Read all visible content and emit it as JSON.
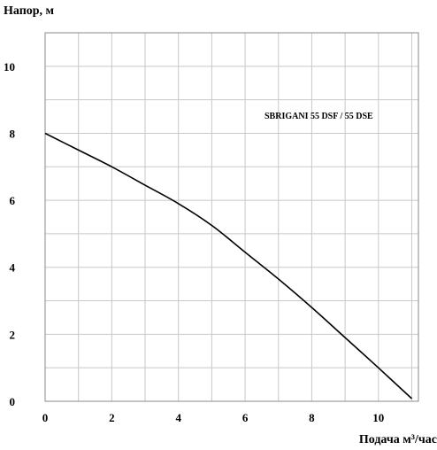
{
  "chart_data": {
    "type": "line",
    "title": "",
    "ylabel": "Напор, м",
    "xlabel": "Подача  м³/час",
    "annotation": "SBRIGANI 55 DSF / 55 DSE",
    "xlim": [
      0,
      11.2
    ],
    "ylim": [
      0,
      11
    ],
    "x_ticks": [
      0,
      2,
      4,
      6,
      8,
      10
    ],
    "y_ticks": [
      0,
      2,
      4,
      6,
      8,
      10
    ],
    "grid": true,
    "series": [
      {
        "values": [
          [
            0,
            8.0
          ],
          [
            1,
            7.5
          ],
          [
            2,
            7.0
          ],
          [
            3,
            6.45
          ],
          [
            4,
            5.9
          ],
          [
            5,
            5.25
          ],
          [
            6,
            4.45
          ],
          [
            7,
            3.65
          ],
          [
            8,
            2.8
          ],
          [
            9,
            1.9
          ],
          [
            10,
            1.0
          ],
          [
            11,
            0.08
          ]
        ]
      }
    ]
  }
}
